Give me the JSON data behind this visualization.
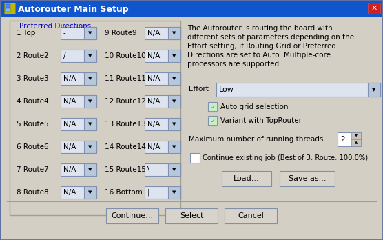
{
  "title": "Autorouter Main Setup",
  "bg_color": "#d4cfc4",
  "title_bar_color": "#1055cc",
  "title_text_color": "#ffffff",
  "desc_text": [
    "The Autorouter is routing the board with",
    "different sets of parameters depending on the",
    "Effort setting, if Routing Grid or Preferred",
    "Directions are set to Auto. Multiple-core",
    "processors are supported."
  ],
  "left_rows": [
    {
      "num": "1",
      "label": "Top",
      "val": "-",
      "rnum": "9",
      "rlabel": "Route9",
      "rval": "N/A"
    },
    {
      "num": "2",
      "label": "Route2",
      "val": "/",
      "rnum": "10",
      "rlabel": "Route10",
      "rval": "N/A"
    },
    {
      "num": "3",
      "label": "Route3",
      "val": "N/A",
      "rnum": "11",
      "rlabel": "Route11",
      "rval": "N/A"
    },
    {
      "num": "4",
      "label": "Route4",
      "val": "N/A",
      "rnum": "12",
      "rlabel": "Route12",
      "rval": "N/A"
    },
    {
      "num": "5",
      "label": "Route5",
      "val": "N/A",
      "rnum": "13",
      "rlabel": "Route13",
      "rval": "N/A"
    },
    {
      "num": "6",
      "label": "Route6",
      "val": "N/A",
      "rnum": "14",
      "rlabel": "Route14",
      "rval": "N/A"
    },
    {
      "num": "7",
      "label": "Route7",
      "val": "N/A",
      "rnum": "15",
      "rlabel": "Route15",
      "rval": "\\"
    },
    {
      "num": "8",
      "label": "Route8",
      "val": "N/A",
      "rnum": "16",
      "rlabel": "Bottom",
      "rval": "|"
    }
  ],
  "effort_label": "Effort",
  "effort_val": "Low",
  "check1_label": "Auto grid selection",
  "check1_checked": true,
  "check2_label": "Variant with TopRouter",
  "check2_checked": true,
  "threads_label": "Maximum number of running threads",
  "threads_val": "2",
  "continue_check_label": "Continue existing job (Best of 3: Route: 100.0%)",
  "continue_checked": false,
  "btn_load": "Load...",
  "btn_save": "Save as...",
  "btn_continue": "Continue...",
  "btn_select": "Select",
  "btn_cancel": "Cancel",
  "dd_bg": "#dde4ef",
  "dd_arrow_bg": "#b8c8dc",
  "dd_border": "#8090b0",
  "btn_bg": "#d8d4cc",
  "btn_border": "#8090a8",
  "check_color": "#22aa22",
  "group_border": "#a0a090",
  "group_label_color": "#0000cc"
}
